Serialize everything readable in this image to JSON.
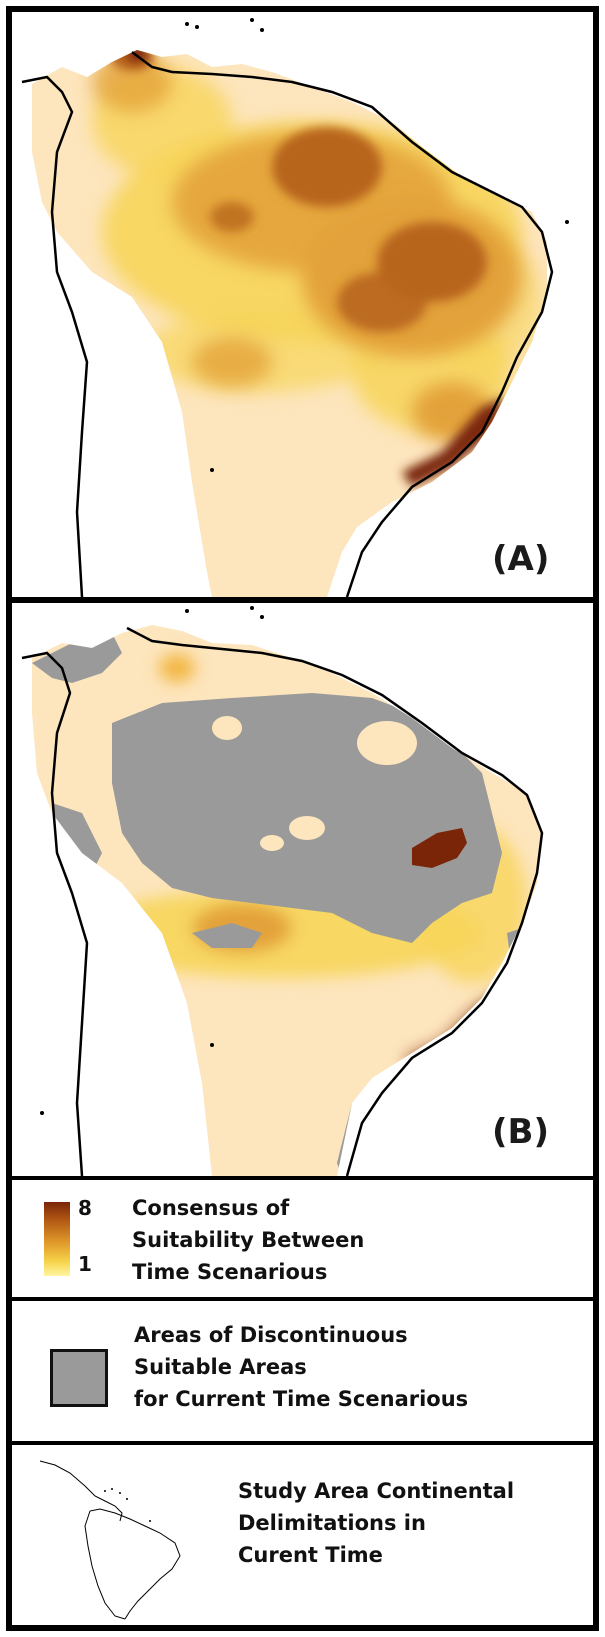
{
  "panels": [
    {
      "label": "(A)"
    },
    {
      "label": "(B)"
    }
  ],
  "legend": {
    "consensus": {
      "max": "8",
      "min": "1",
      "lines": [
        "Consensus of",
        "Suitability Between",
        "Time Scenarious"
      ],
      "ramp_colors": [
        "#7a2508",
        "#b35a14",
        "#e09a2a",
        "#f6d24a",
        "#fff6a0"
      ]
    },
    "discontinuous": {
      "lines": [
        "Areas of Discontinuous",
        "Suitable Areas",
        "for Current Time Scenarious"
      ],
      "color": "#9a9a9a"
    },
    "study_area": {
      "lines": [
        "Study Area Continental",
        "Delimitations in",
        "Curent Time"
      ]
    }
  },
  "colors": {
    "land_base": "#fde5bd",
    "low_suitability": "#f7d55a",
    "mid_suitability": "#e3a23a",
    "high_suitability": "#b8651c",
    "max_suitability": "#7a2508",
    "discontinuous_grey": "#9a9a9a",
    "coastline": "#000000"
  }
}
